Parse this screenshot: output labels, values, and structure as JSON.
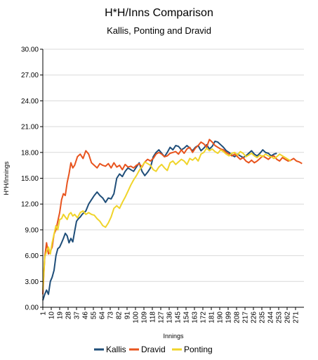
{
  "chart_data": {
    "type": "line",
    "title": "H*H/Inns Comparison",
    "subtitle": "Kallis, Ponting and Dravid",
    "xlabel": "Innings",
    "ylabel": "H*H/Innings",
    "ylim": [
      0,
      30
    ],
    "xlim": [
      1,
      280
    ],
    "y_ticks": [
      "0.00",
      "3.00",
      "6.00",
      "9.00",
      "12.00",
      "15.00",
      "18.00",
      "21.00",
      "24.00",
      "27.00",
      "30.00"
    ],
    "x_ticks": [
      1,
      10,
      19,
      28,
      37,
      46,
      55,
      64,
      73,
      82,
      91,
      100,
      109,
      118,
      127,
      136,
      145,
      154,
      163,
      172,
      181,
      190,
      199,
      208,
      217,
      226,
      235,
      244,
      253,
      262,
      271
    ],
    "grid": "horizontal",
    "legend_position": "bottom",
    "series": [
      {
        "name": "Kallis",
        "color": "#1f4e79",
        "x": [
          1,
          3,
          5,
          7,
          9,
          11,
          13,
          15,
          17,
          19,
          21,
          23,
          25,
          27,
          29,
          31,
          33,
          35,
          37,
          39,
          41,
          43,
          45,
          47,
          50,
          53,
          56,
          59,
          62,
          65,
          68,
          71,
          74,
          77,
          80,
          83,
          86,
          89,
          92,
          95,
          98,
          101,
          104,
          107,
          110,
          113,
          116,
          119,
          122,
          125,
          128,
          131,
          134,
          137,
          140,
          143,
          146,
          149,
          152,
          155,
          158,
          161,
          164,
          167,
          170,
          173,
          176,
          179,
          182,
          185,
          188,
          191,
          194,
          197,
          200,
          203,
          206,
          209,
          212,
          215,
          218,
          221,
          224,
          227,
          230,
          233,
          236,
          239,
          242,
          245,
          248,
          251
        ],
        "y": [
          0.8,
          1.5,
          2.0,
          1.5,
          3.0,
          3.5,
          4.3,
          6.0,
          6.8,
          7.0,
          7.5,
          8.0,
          8.6,
          8.3,
          7.5,
          8.0,
          7.6,
          8.8,
          10.0,
          10.3,
          10.5,
          10.8,
          11.0,
          11.2,
          12.0,
          12.5,
          13.0,
          13.4,
          13.0,
          12.7,
          12.2,
          12.7,
          12.6,
          13.2,
          15.0,
          15.5,
          15.2,
          15.8,
          16.2,
          16.0,
          15.8,
          16.3,
          16.8,
          15.8,
          15.3,
          15.7,
          16.2,
          17.5,
          18.0,
          18.3,
          17.9,
          17.5,
          18.0,
          18.6,
          18.3,
          18.8,
          18.7,
          18.3,
          18.5,
          18.8,
          18.5,
          18.2,
          18.6,
          18.8,
          18.2,
          18.5,
          18.9,
          18.4,
          18.7,
          19.3,
          19.2,
          18.9,
          18.6,
          18.2,
          18.0,
          17.7,
          17.5,
          17.8,
          17.6,
          17.4,
          17.6,
          17.9,
          18.2,
          17.8,
          17.6,
          17.9,
          18.3,
          18.0,
          17.9,
          17.6,
          17.8,
          17.9
        ]
      },
      {
        "name": "Dravid",
        "color": "#e8541e",
        "x": [
          1,
          3,
          5,
          7,
          9,
          11,
          13,
          15,
          17,
          19,
          21,
          23,
          25,
          27,
          29,
          31,
          33,
          35,
          38,
          41,
          44,
          47,
          50,
          53,
          56,
          59,
          62,
          65,
          68,
          71,
          74,
          77,
          80,
          83,
          86,
          89,
          92,
          95,
          98,
          101,
          104,
          107,
          110,
          113,
          116,
          119,
          122,
          125,
          128,
          131,
          134,
          137,
          140,
          143,
          146,
          149,
          152,
          155,
          158,
          161,
          164,
          167,
          170,
          173,
          176,
          179,
          182,
          185,
          188,
          191,
          194,
          197,
          200,
          203,
          206,
          209,
          212,
          215,
          218,
          221,
          224,
          227,
          230,
          233,
          236,
          239,
          242,
          245,
          248,
          251,
          254,
          257,
          260,
          263,
          266,
          269,
          272,
          275,
          278
        ],
        "y": [
          1.5,
          5.8,
          7.5,
          6.2,
          6.5,
          7.0,
          8.5,
          9.0,
          10.0,
          11.0,
          12.5,
          13.2,
          13.0,
          14.5,
          15.5,
          16.8,
          16.2,
          16.5,
          17.5,
          17.8,
          17.3,
          18.2,
          17.8,
          16.8,
          16.5,
          16.2,
          16.7,
          16.5,
          16.4,
          16.7,
          16.2,
          16.8,
          16.3,
          16.5,
          16.0,
          16.6,
          16.3,
          16.4,
          16.2,
          16.5,
          16.7,
          16.3,
          16.9,
          17.2,
          17.0,
          17.3,
          17.8,
          18.0,
          17.8,
          17.5,
          17.6,
          17.9,
          18.0,
          18.1,
          17.8,
          18.3,
          17.9,
          18.4,
          18.6,
          18.0,
          18.5,
          18.8,
          19.2,
          19.0,
          18.6,
          19.5,
          19.2,
          18.8,
          18.6,
          18.4,
          18.3,
          18.0,
          17.8,
          17.6,
          17.8,
          17.5,
          17.2,
          17.4,
          17.0,
          16.8,
          17.1,
          16.8,
          17.0,
          17.3,
          17.6,
          17.4,
          17.2,
          17.5,
          17.6,
          17.2,
          17.0,
          17.4,
          17.2,
          17.0,
          17.1,
          17.3,
          17.0,
          16.9,
          16.7
        ]
      },
      {
        "name": "Ponting",
        "color": "#f0d42a",
        "x": [
          1,
          3,
          5,
          7,
          9,
          11,
          13,
          15,
          17,
          19,
          21,
          23,
          25,
          27,
          29,
          31,
          33,
          35,
          38,
          41,
          44,
          47,
          50,
          53,
          56,
          59,
          62,
          65,
          68,
          71,
          74,
          77,
          80,
          83,
          86,
          89,
          92,
          95,
          98,
          101,
          104,
          107,
          110,
          113,
          116,
          119,
          122,
          125,
          128,
          131,
          134,
          137,
          140,
          143,
          146,
          149,
          152,
          155,
          158,
          161,
          164,
          167,
          170,
          173,
          176,
          179,
          182,
          185,
          188,
          191,
          194,
          197,
          200,
          203,
          206,
          209,
          212,
          215,
          218,
          221,
          224,
          227,
          230,
          233,
          236,
          239,
          242,
          245,
          248,
          251,
          254,
          257,
          260,
          263,
          266
        ],
        "y": [
          2.0,
          5.8,
          6.5,
          7.0,
          6.2,
          7.5,
          8.5,
          9.5,
          9.0,
          10.2,
          10.3,
          10.8,
          10.5,
          10.2,
          10.8,
          11.0,
          10.6,
          10.8,
          10.4,
          11.0,
          11.2,
          10.8,
          11.0,
          10.8,
          10.7,
          10.3,
          10.0,
          9.5,
          9.3,
          9.8,
          10.5,
          11.5,
          11.8,
          11.5,
          12.2,
          12.8,
          13.5,
          14.2,
          14.8,
          15.3,
          15.9,
          16.4,
          16.9,
          16.7,
          16.5,
          16.0,
          15.8,
          16.3,
          16.6,
          16.2,
          15.9,
          16.8,
          17.0,
          16.6,
          16.9,
          17.2,
          17.0,
          16.6,
          17.3,
          17.1,
          17.4,
          17.0,
          17.8,
          18.0,
          18.5,
          18.2,
          18.4,
          18.1,
          17.9,
          18.3,
          18.1,
          17.8,
          17.6,
          17.9,
          18.0,
          17.7,
          18.1,
          17.9,
          17.5,
          17.7,
          17.9,
          17.6,
          17.4,
          17.7,
          17.5,
          17.8,
          17.6,
          17.5,
          17.3,
          17.5,
          17.8,
          17.6,
          17.4,
          17.2,
          17.0
        ]
      }
    ]
  }
}
